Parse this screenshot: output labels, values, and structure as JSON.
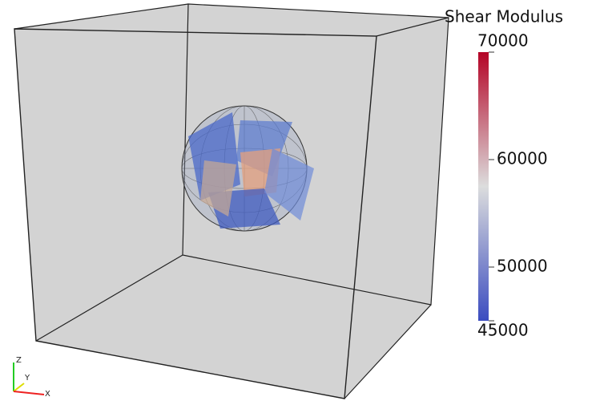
{
  "color_bar": {
    "title": "Shear Modulus",
    "range": [
      45000,
      70000
    ],
    "ticks": [
      70000,
      60000,
      50000,
      45000
    ]
  },
  "axes_triad": {
    "labels": [
      "Z",
      "Y",
      "X"
    ]
  }
}
